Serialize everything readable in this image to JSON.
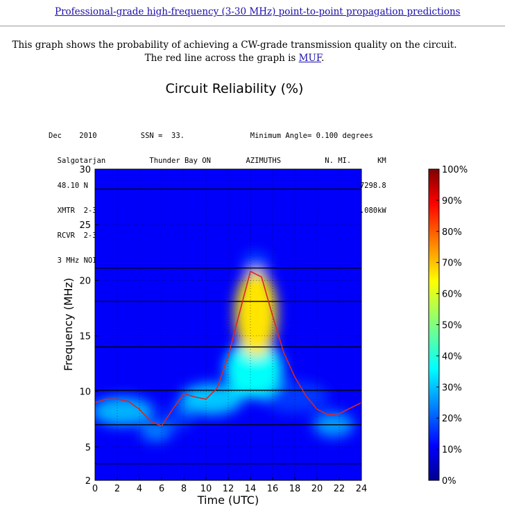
{
  "page": {
    "top_link": "Professional-grade high-frequency (3-30 MHz) point-to-point propagation predictions",
    "intro_line1": "This graph shows the probability of achieving a CW-grade transmission quality on the circuit.",
    "intro_line2_prefix": "The red line across the graph is ",
    "intro_link": "MUF",
    "intro_line2_suffix": "."
  },
  "header_lines": [
    "Dec    2010          SSN =  33.               Minimum Angle= 0.100 degrees",
    "  Salgotarjan          Thunder Bay ON        AZIMUTHS          N. MI.      KM",
    "  48.10 N   19.79 E - 48.40 N   89.20 W    316.44   43.88    3941.3    7298.8",
    "  XMTR  2-30 2-D P-to-P[voaant/d10m.ant      ] Az=  0.0 OFFaz=316.4   0.080kW",
    "  RCVR  2-30 2-D P-to-P[voaant/d10m.ant      ] Az=  0.0 OFFaz= 43.9",
    "  3 MHz NOISE = -155.0 dBW     REQ. REL = 90%    REQ. SNR = 24.0 dB"
  ],
  "chart_data": {
    "type": "heatmap",
    "title": "Circuit Reliability (%)",
    "xlabel": "Time (UTC)",
    "ylabel": "Frequency (MHz)",
    "xlim": [
      0,
      24
    ],
    "ylim": [
      2,
      30
    ],
    "x_ticks": [
      "0",
      "2",
      "4",
      "6",
      "8",
      "10",
      "12",
      "14",
      "16",
      "18",
      "20",
      "22",
      "24"
    ],
    "y_ticks": [
      "2",
      "5",
      "10",
      "15",
      "20",
      "25",
      "30"
    ],
    "colorbar_ticks": [
      "0%",
      "10%",
      "20%",
      "30%",
      "40%",
      "50%",
      "60%",
      "70%",
      "80%",
      "90%",
      "100%"
    ],
    "horizontal_lines_mhz": [
      3.5,
      7.0,
      10.1,
      14.0,
      18.1,
      21.1,
      28.2
    ],
    "muf_series": {
      "color": "#d62728",
      "x": [
        0,
        1,
        2,
        3,
        4,
        5,
        6,
        7,
        8,
        9,
        10,
        11,
        12,
        13,
        14,
        15,
        16,
        17,
        18,
        19,
        20,
        21,
        22,
        23,
        24
      ],
      "y": [
        9.0,
        9.3,
        9.3,
        9.1,
        8.4,
        7.3,
        6.9,
        8.4,
        9.8,
        9.5,
        9.3,
        10.3,
        13.2,
        17.0,
        20.8,
        20.3,
        16.8,
        13.5,
        11.3,
        9.6,
        8.4,
        7.9,
        8.0,
        8.5,
        9.0
      ]
    },
    "reliability_blobs": [
      {
        "time": 14.5,
        "freq": 17.0,
        "dt": 1.9,
        "df": 3.9,
        "value": 0.65
      },
      {
        "time": 14.3,
        "freq": 12.0,
        "dt": 2.6,
        "df": 2.6,
        "value": 0.38
      },
      {
        "time": 10.5,
        "freq": 9.3,
        "dt": 2.8,
        "df": 1.4,
        "value": 0.32
      },
      {
        "time": 2.5,
        "freq": 8.2,
        "dt": 2.8,
        "df": 1.3,
        "value": 0.3
      },
      {
        "time": 5.5,
        "freq": 6.4,
        "dt": 1.4,
        "df": 0.9,
        "value": 0.25
      },
      {
        "time": 7.5,
        "freq": 7.7,
        "dt": 1.3,
        "df": 1.1,
        "value": 0.18
      },
      {
        "time": 21.5,
        "freq": 7.0,
        "dt": 1.8,
        "df": 1.1,
        "value": 0.28
      },
      {
        "time": 18.0,
        "freq": 9.5,
        "dt": 3.0,
        "df": 1.4,
        "value": 0.18
      },
      {
        "time": 14.5,
        "freq": 21.5,
        "dt": 1.2,
        "df": 1.0,
        "value": 0.2
      }
    ],
    "background_value": 0.12
  }
}
